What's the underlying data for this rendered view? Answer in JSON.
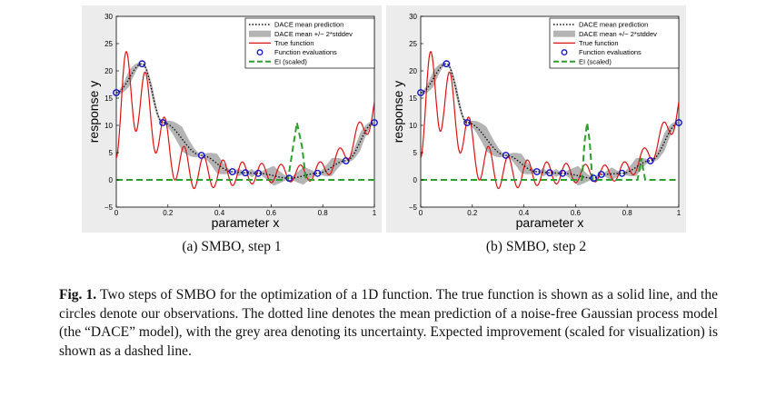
{
  "figure": {
    "panels": [
      {
        "subcaption": "(a) SMBO, step 1",
        "legend": [
          "DACE mean prediction",
          "DACE mean +/− 2*stddev",
          "True function",
          "Function evaluations",
          "EI (scaled)"
        ]
      },
      {
        "subcaption": "(b) SMBO, step 2",
        "legend": [
          "DACE mean prediction",
          "DACE mean +/− 2*stddev",
          "True function",
          "Function evaluations",
          "EI (scaled)"
        ]
      }
    ],
    "caption_label": "Fig. 1.",
    "caption_text": " Two steps of SMBO for the optimization of a 1D function. The true function is shown as a solid line, and the circles denote our observations. The dotted line denotes the mean prediction of a noise-free Gaussian process model (the “DACE” model), with the grey area denoting its uncertainty. Expected improvement (scaled for visualization) is shown as a dashed line."
  },
  "chart_data": [
    {
      "type": "line",
      "xlabel": "parameter x",
      "ylabel": "response y",
      "xlim": [
        0,
        1
      ],
      "ylim": [
        -5,
        30
      ],
      "x_ticks": [
        "0",
        "0.2",
        "0.4",
        "0.6",
        "0.8",
        "1"
      ],
      "y_ticks": [
        "−5",
        "0",
        "5",
        "10",
        "15",
        "20",
        "25",
        "30"
      ],
      "grid": false,
      "legend_position": "top-right",
      "colors": {
        "true": "#dd1111",
        "mean": "#111111",
        "band": "#b4b4b4",
        "ei": "#2ca02c",
        "obs": "#1111cc"
      },
      "observations": {
        "x": [
          0.0,
          0.1,
          0.18,
          0.33,
          0.45,
          0.5,
          0.55,
          0.67,
          0.78,
          0.89,
          1.0
        ],
        "y": [
          16,
          21.3,
          10.5,
          4.5,
          1.5,
          1.3,
          1.2,
          0.3,
          1.2,
          3.5,
          10.5
        ]
      },
      "ei": {
        "x": [
          0.0,
          0.665,
          0.685,
          0.7,
          0.72,
          0.735,
          1.0
        ],
        "y": [
          0,
          0,
          6,
          10.5,
          6,
          0,
          0
        ]
      }
    },
    {
      "type": "line",
      "xlabel": "parameter x",
      "ylabel": "response y",
      "xlim": [
        0,
        1
      ],
      "ylim": [
        -5,
        30
      ],
      "x_ticks": [
        "0",
        "0.2",
        "0.4",
        "0.6",
        "0.8",
        "1"
      ],
      "y_ticks": [
        "−5",
        "0",
        "5",
        "10",
        "15",
        "20",
        "25",
        "30"
      ],
      "grid": false,
      "legend_position": "top-right",
      "colors": {
        "true": "#dd1111",
        "mean": "#111111",
        "band": "#b4b4b4",
        "ei": "#2ca02c",
        "obs": "#1111cc"
      },
      "observations": {
        "x": [
          0.0,
          0.1,
          0.18,
          0.33,
          0.45,
          0.5,
          0.55,
          0.67,
          0.7,
          0.78,
          0.89,
          1.0
        ],
        "y": [
          16,
          21.3,
          10.5,
          4.5,
          1.5,
          1.3,
          1.2,
          0.3,
          1.0,
          1.2,
          3.5,
          10.5
        ]
      },
      "ei": {
        "x": [
          0.0,
          0.625,
          0.635,
          0.645,
          0.655,
          0.665,
          0.84,
          0.848,
          0.855,
          0.862,
          0.87,
          1.0
        ],
        "y": [
          0,
          0,
          7,
          10.5,
          7,
          0,
          0,
          2,
          4,
          2,
          0,
          0
        ]
      }
    }
  ]
}
